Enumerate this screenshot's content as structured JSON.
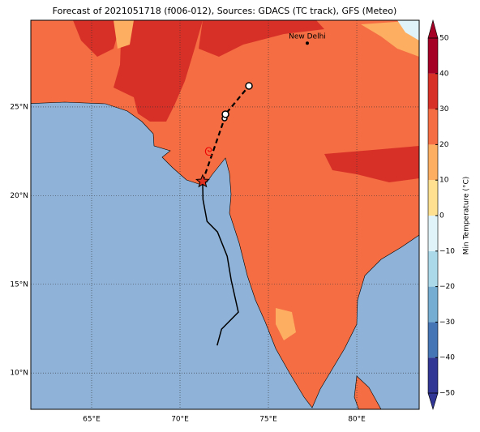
{
  "title": "Forecast of 2021051718 (f006-012), Sources: GDACS (TC track), GFS (Meteo)",
  "map": {
    "lon_range": [
      61.56,
      83.53
    ],
    "lat_range": [
      7.95,
      29.89
    ],
    "lon_ticks": [
      {
        "value": 65,
        "label": "65°E"
      },
      {
        "value": 70,
        "label": "70°E"
      },
      {
        "value": 75,
        "label": "75°E"
      },
      {
        "value": 80,
        "label": "80°E"
      }
    ],
    "lat_ticks": [
      {
        "value": 10,
        "label": "10°N"
      },
      {
        "value": 15,
        "label": "15°N"
      },
      {
        "value": 20,
        "label": "20°N"
      },
      {
        "value": 25,
        "label": "25°N"
      }
    ]
  },
  "places": [
    {
      "name": "New Delhi",
      "lon": 77.2,
      "lat": 28.6
    }
  ],
  "forecast_track": {
    "lon": [
      71.28,
      72.52,
      72.57,
      73.9
    ],
    "lat": [
      20.8,
      24.36,
      24.59,
      26.19
    ]
  },
  "past_track": {
    "lon": [
      72.1,
      72.35,
      73.3,
      72.9,
      72.67,
      72.12,
      71.53,
      71.3,
      71.28
    ],
    "lat": [
      11.55,
      12.47,
      13.43,
      15.21,
      16.58,
      17.95,
      18.55,
      19.78,
      20.8
    ]
  },
  "colorbar": {
    "label": "Min Temperature (°C)",
    "range": [
      -50,
      50
    ],
    "ticks": [
      {
        "value": -50,
        "label": "−50"
      },
      {
        "value": -40,
        "label": "−40"
      },
      {
        "value": -30,
        "label": "−30"
      },
      {
        "value": -20,
        "label": "−20"
      },
      {
        "value": -10,
        "label": "−10"
      },
      0,
      10,
      20,
      30,
      40,
      50
    ],
    "colors": [
      "#313695",
      "#4575b4",
      "#74add1",
      "#abd9e9",
      "#e0f3f8",
      "#fee090",
      "#fdae61",
      "#f46d43",
      "#d73027",
      "#a50026"
    ]
  }
}
